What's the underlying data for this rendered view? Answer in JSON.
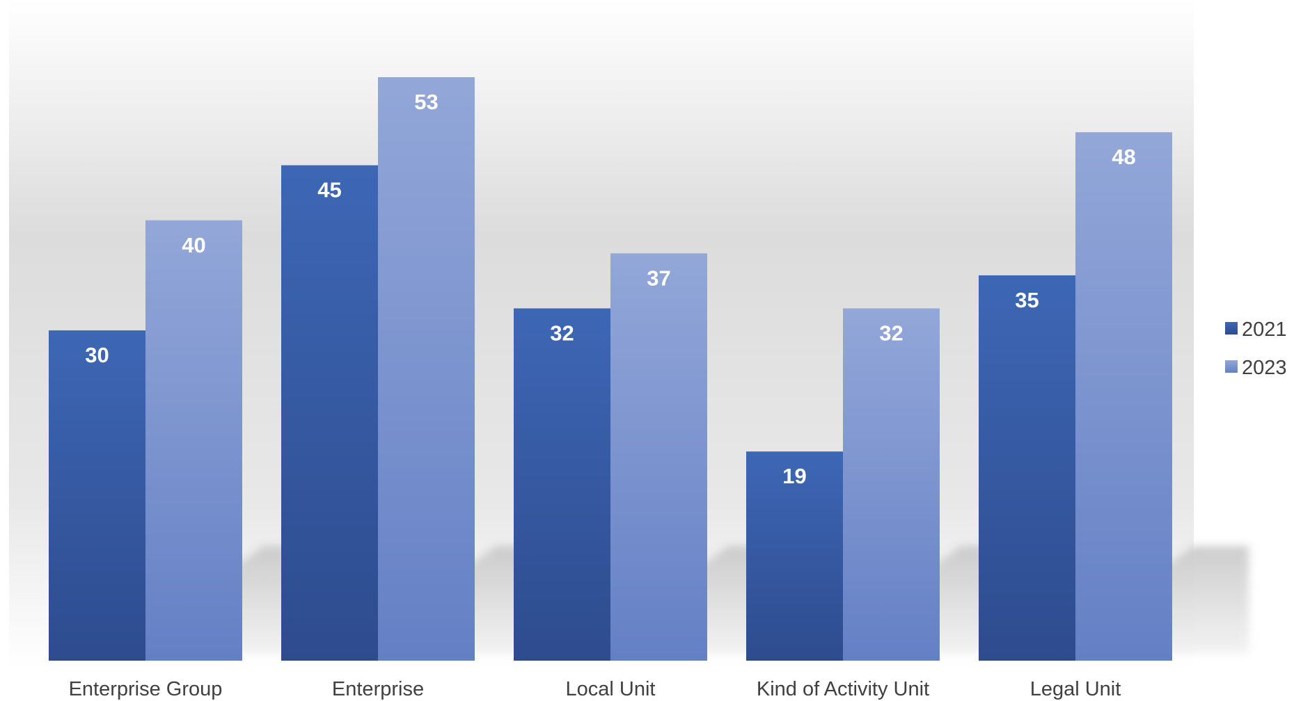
{
  "chart_data": {
    "type": "bar",
    "title": "",
    "xlabel": "",
    "ylabel": "",
    "categories": [
      "Enterprise Group",
      "Enterprise",
      "Local Unit",
      "Kind of Activity Unit",
      "Legal Unit"
    ],
    "series": [
      {
        "name": "2021",
        "values": [
          30,
          45,
          32,
          19,
          35
        ],
        "color": "#2E4D96"
      },
      {
        "name": "2023",
        "values": [
          40,
          53,
          37,
          32,
          48
        ],
        "color": "#7F96D0"
      }
    ],
    "ylim": [
      0,
      53
    ],
    "grid": false,
    "legend_position": "right",
    "data_labels": true
  }
}
